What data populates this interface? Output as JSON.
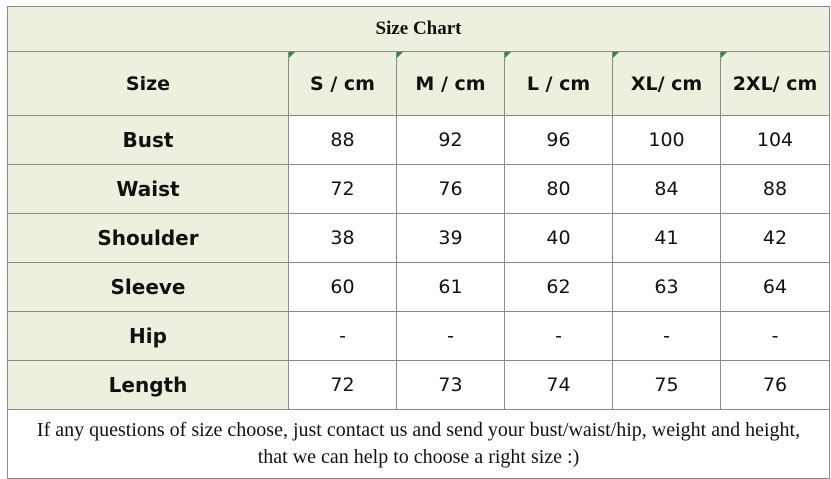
{
  "title": "Size Chart",
  "header": {
    "label": "Size",
    "sizes": [
      "S / cm",
      "M / cm",
      "L / cm",
      "XL/ cm",
      "2XL/ cm"
    ]
  },
  "rows": [
    {
      "label": "Bust",
      "values": [
        "88",
        "92",
        "96",
        "100",
        "104"
      ]
    },
    {
      "label": "Waist",
      "values": [
        "72",
        "76",
        "80",
        "84",
        "88"
      ]
    },
    {
      "label": "Shoulder",
      "values": [
        "38",
        "39",
        "40",
        "41",
        "42"
      ]
    },
    {
      "label": "Sleeve",
      "values": [
        "60",
        "61",
        "62",
        "63",
        "64"
      ]
    },
    {
      "label": "Hip",
      "values": [
        "-",
        "-",
        "-",
        "-",
        "-"
      ]
    },
    {
      "label": "Length",
      "values": [
        "72",
        "73",
        "74",
        "75",
        "76"
      ]
    }
  ],
  "note": {
    "line1": "If any questions of size choose, just contact us and send your bust/waist/hip, weight and height,",
    "line2": "that we can help to choose a right size :)"
  },
  "colors": {
    "header_background": "#ebf1de",
    "border": "#8a8a8a",
    "corner_mark": "#2e8b3a"
  }
}
